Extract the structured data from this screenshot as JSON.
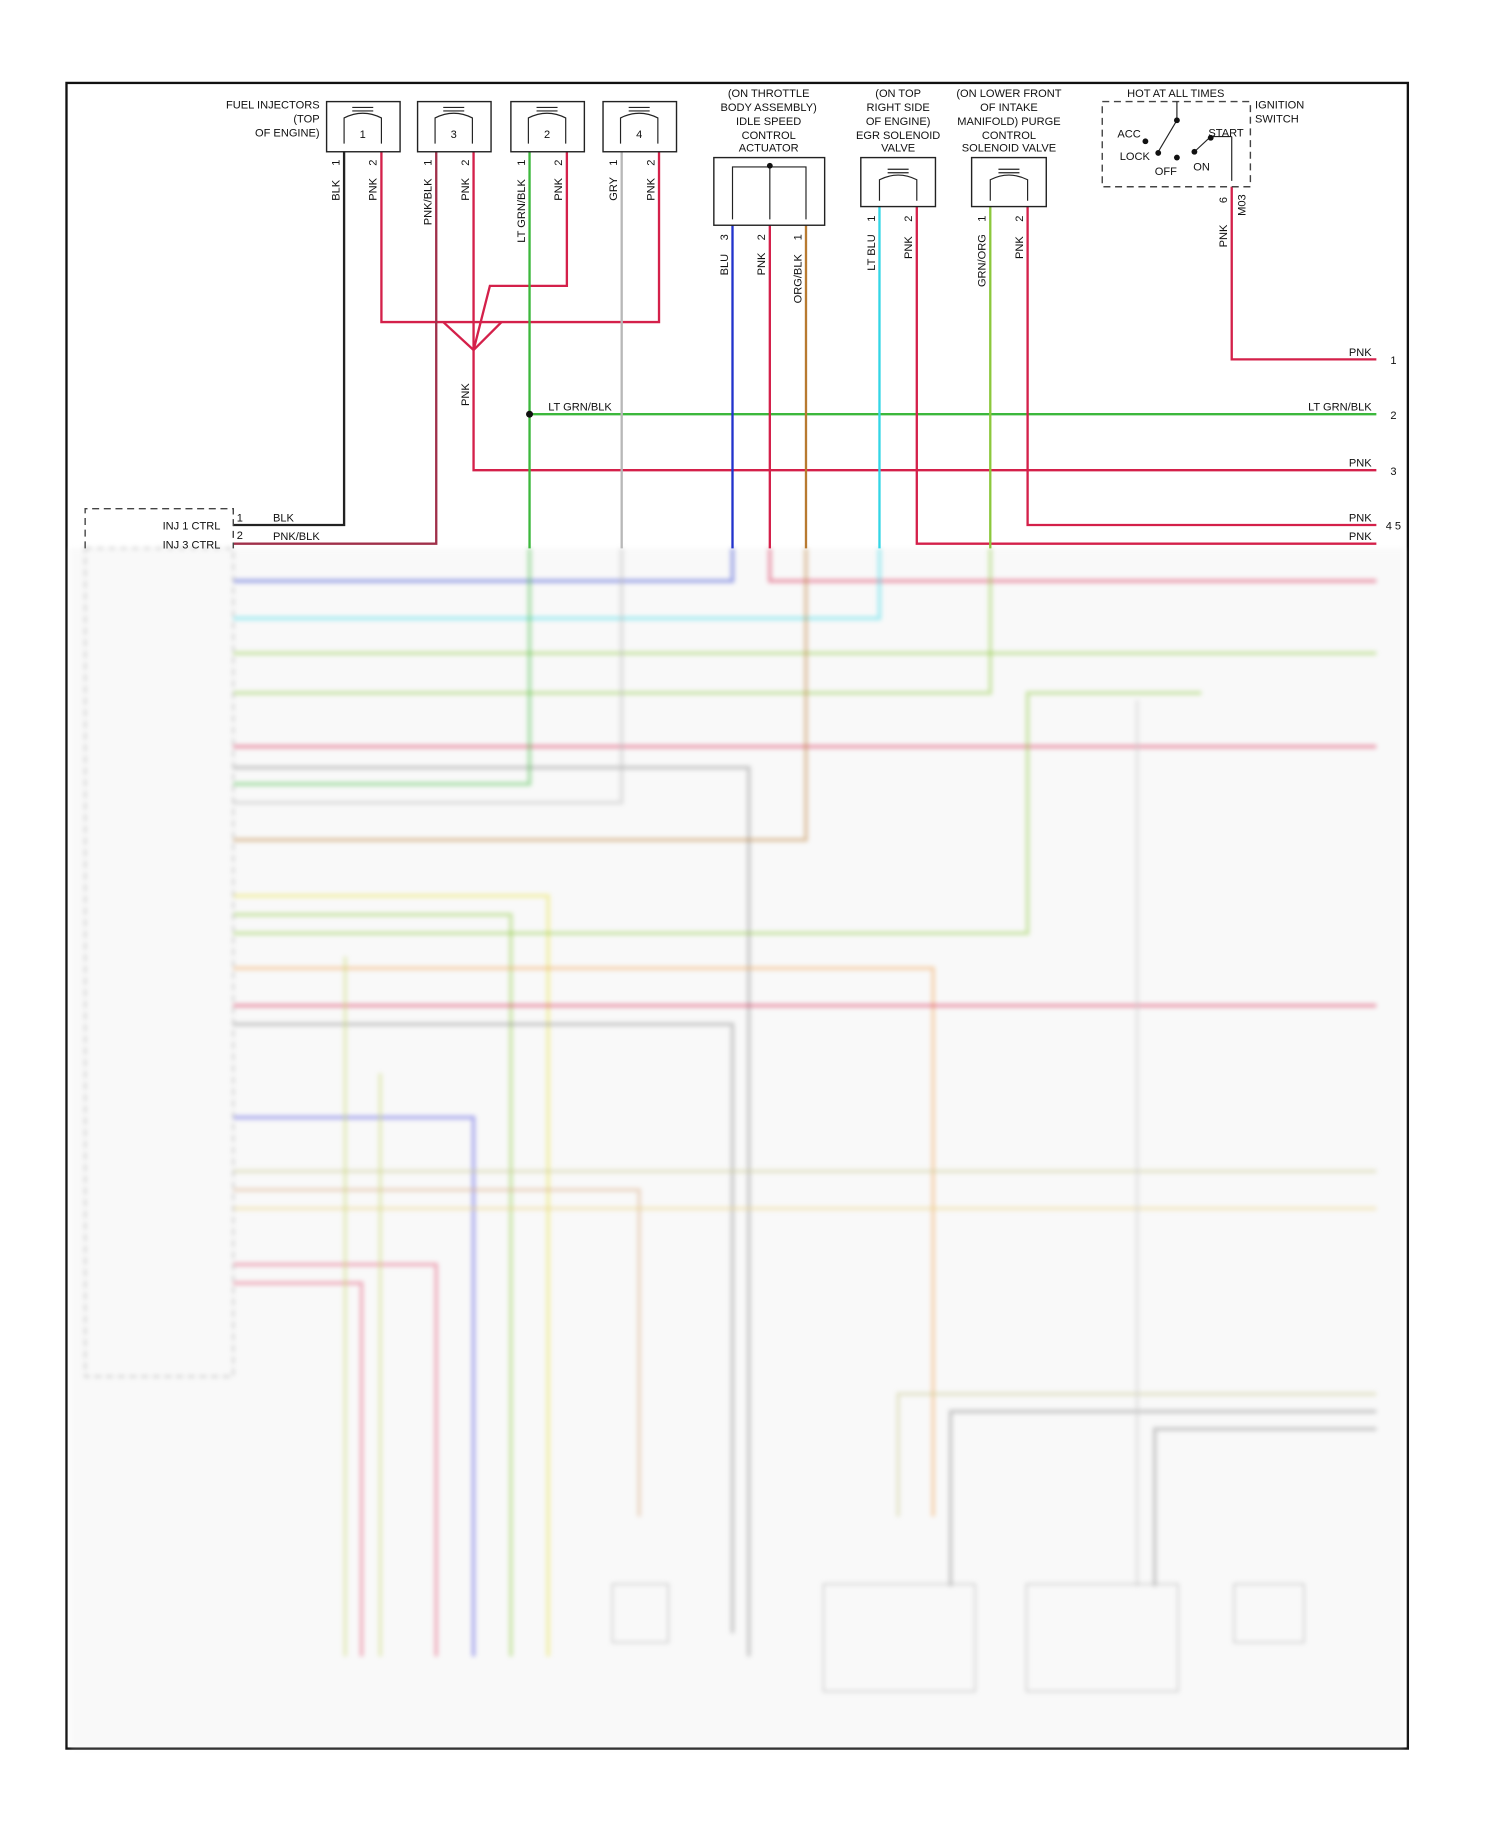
{
  "injectors": {
    "title": [
      "FUEL INJECTORS",
      "(TOP",
      "OF ENGINE)"
    ],
    "units": [
      {
        "num": "1",
        "wire1": "BLK",
        "wire2": "PNK"
      },
      {
        "num": "3",
        "wire1": "PNK/BLK",
        "wire2": "PNK"
      },
      {
        "num": "2",
        "wire1": "LT GRN/BLK",
        "wire2": "PNK"
      },
      {
        "num": "4",
        "wire1": "GRY",
        "wire2": "PNK"
      }
    ],
    "pin1": "1",
    "pin2": "2"
  },
  "isc": {
    "title": [
      "(ON THROTTLE",
      "BODY ASSEMBLY)",
      "IDLE SPEED",
      "CONTROL",
      "ACTUATOR"
    ],
    "pins": [
      "3",
      "2",
      "1"
    ],
    "wires": [
      "BLU",
      "PNK",
      "ORG/BLK"
    ]
  },
  "egr": {
    "title": [
      "(ON TOP",
      "RIGHT SIDE",
      "OF ENGINE)",
      "EGR SOLENOID",
      "VALVE"
    ],
    "pins": [
      "1",
      "2"
    ],
    "wires": [
      "LT BLU",
      "PNK"
    ]
  },
  "purge": {
    "title": [
      "(ON LOWER FRONT",
      "OF INTAKE",
      "MANIFOLD) PURGE",
      "CONTROL",
      "SOLENOID VALVE"
    ],
    "pins": [
      "1",
      "2"
    ],
    "wires": [
      "GRN/ORG",
      "PNK"
    ]
  },
  "ignition": {
    "hot": "HOT AT ALL TIMES",
    "title": [
      "IGNITION",
      "SWITCH"
    ],
    "positions": {
      "acc": "ACC",
      "lock": "LOCK",
      "off": "OFF",
      "on": "ON",
      "start": "START"
    },
    "pin": "6",
    "connector": "M03",
    "wire": "PNK"
  },
  "splice_wire": "PNK",
  "junction_wire": "LT GRN/BLK",
  "right_edge": [
    {
      "label": "PNK",
      "ref": "1"
    },
    {
      "label": "LT GRN/BLK",
      "ref": "2"
    },
    {
      "label": "PNK",
      "ref": "3"
    },
    {
      "label": "PNK",
      "ref": "4 5"
    },
    {
      "label": "PNK",
      "ref": ""
    }
  ],
  "pcm": {
    "rows": [
      {
        "label": "INJ 1 CTRL",
        "pin": "1",
        "wire": "BLK"
      },
      {
        "label": "INJ 3 CTRL",
        "pin": "2",
        "wire": "PNK/BLK"
      }
    ]
  },
  "colors": {
    "pnk": "#d4204a",
    "blk": "#222222",
    "pnkblk": "#a0304a",
    "ltgrnblk": "#3cb83c",
    "gry": "#b8b8b8",
    "blu": "#2233cc",
    "orgblk": "#b87a30",
    "ltblu": "#33d6e6",
    "grnorg": "#8cc83c"
  }
}
